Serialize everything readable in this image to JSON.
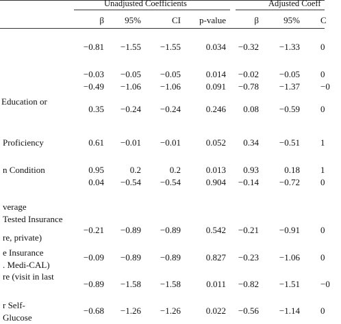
{
  "table": {
    "group_headers": {
      "unadjusted": "Unadjusted Coefficients",
      "adjusted": "Adjusted Coeff"
    },
    "column_headers": [
      "β",
      "95%",
      "CI",
      "p-value",
      "β",
      "95%",
      "C"
    ],
    "labels": [
      "Education or",
      "Proficiency",
      "n Condition",
      "verage",
      "Tested Insurance",
      "re, private)",
      "e Insurance",
      ". Medi-CAL)",
      "re (visit in last",
      "r Self-",
      "Glucose"
    ],
    "rows": [
      [
        "−0.81",
        "−1.55",
        "−1.55",
        "0.034",
        "−0.32",
        "−1.33",
        "0"
      ],
      [
        "−0.03",
        "−0.05",
        "−0.05",
        "0.014",
        "−0.02",
        "−0.05",
        "0"
      ],
      [
        "−0.49",
        "−1.06",
        "−1.06",
        "0.091",
        "−0.78",
        "−1.37",
        "−0"
      ],
      [
        "0.35",
        "−0.24",
        "−0.24",
        "0.246",
        "0.08",
        "−0.59",
        "0"
      ],
      [
        "0.61",
        "−0.01",
        "−0.01",
        "0.052",
        "0.34",
        "−0.51",
        "1"
      ],
      [
        "0.95",
        "0.2",
        "0.2",
        "0.013",
        "0.93",
        "0.18",
        "1"
      ],
      [
        "0.04",
        "−0.54",
        "−0.54",
        "0.904",
        "−0.14",
        "−0.72",
        "0"
      ],
      [
        "−0.21",
        "−0.89",
        "−0.89",
        "0.542",
        "−0.21",
        "−0.91",
        "0"
      ],
      [
        "−0.09",
        "−0.89",
        "−0.89",
        "0.827",
        "−0.23",
        "−1.06",
        "0"
      ],
      [
        "−0.89",
        "−1.58",
        "−1.58",
        "0.011",
        "−0.82",
        "−1.51",
        "−0"
      ],
      [
        "−0.68",
        "−1.26",
        "−1.26",
        "0.022",
        "−0.56",
        "−1.14",
        "0"
      ]
    ]
  }
}
